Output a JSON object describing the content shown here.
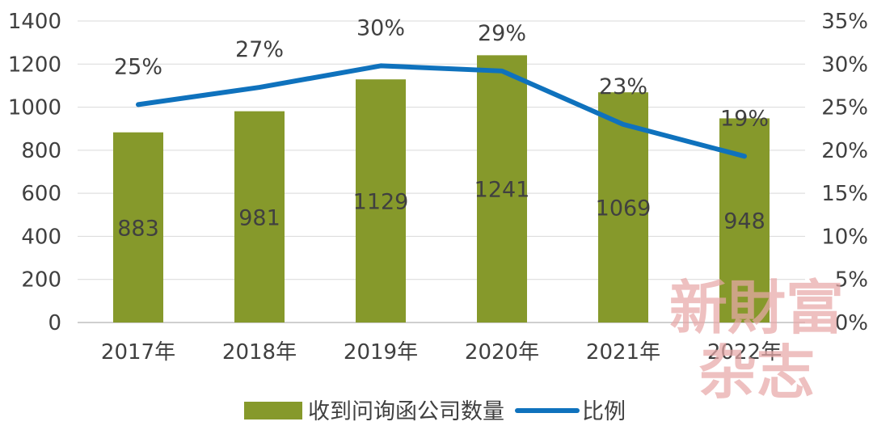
{
  "chart_data": {
    "type": "bar",
    "categories": [
      "2017年",
      "2018年",
      "2019年",
      "2020年",
      "2021年",
      "2022年"
    ],
    "series": [
      {
        "name": "收到问询函公司数量",
        "type": "bar",
        "axis": "left",
        "values": [
          883,
          981,
          1129,
          1241,
          1069,
          948
        ],
        "labels": [
          "883",
          "981",
          "1129",
          "1241",
          "1069",
          "948"
        ]
      },
      {
        "name": "比例",
        "type": "line",
        "axis": "right",
        "values": [
          25.3,
          27.3,
          29.8,
          29.2,
          23.0,
          19.3
        ],
        "labels": [
          "25%",
          "27%",
          "30%",
          "29%",
          "23%",
          "19%"
        ]
      }
    ],
    "y_left": {
      "min": 0,
      "max": 1400,
      "step": 200,
      "ticks": [
        "0",
        "200",
        "400",
        "600",
        "800",
        "1000",
        "1200",
        "1400"
      ]
    },
    "y_right": {
      "min": 0,
      "max": 35,
      "step": 5,
      "ticks": [
        "0%",
        "5%",
        "10%",
        "15%",
        "20%",
        "25%",
        "30%",
        "35%"
      ]
    },
    "grid": true,
    "legend_position": "bottom",
    "colors": {
      "bar": "#86992b",
      "line": "#0f72bd",
      "grid": "#d9d9d9",
      "text": "#404040"
    },
    "watermark": [
      "新財富",
      "杂志"
    ]
  }
}
